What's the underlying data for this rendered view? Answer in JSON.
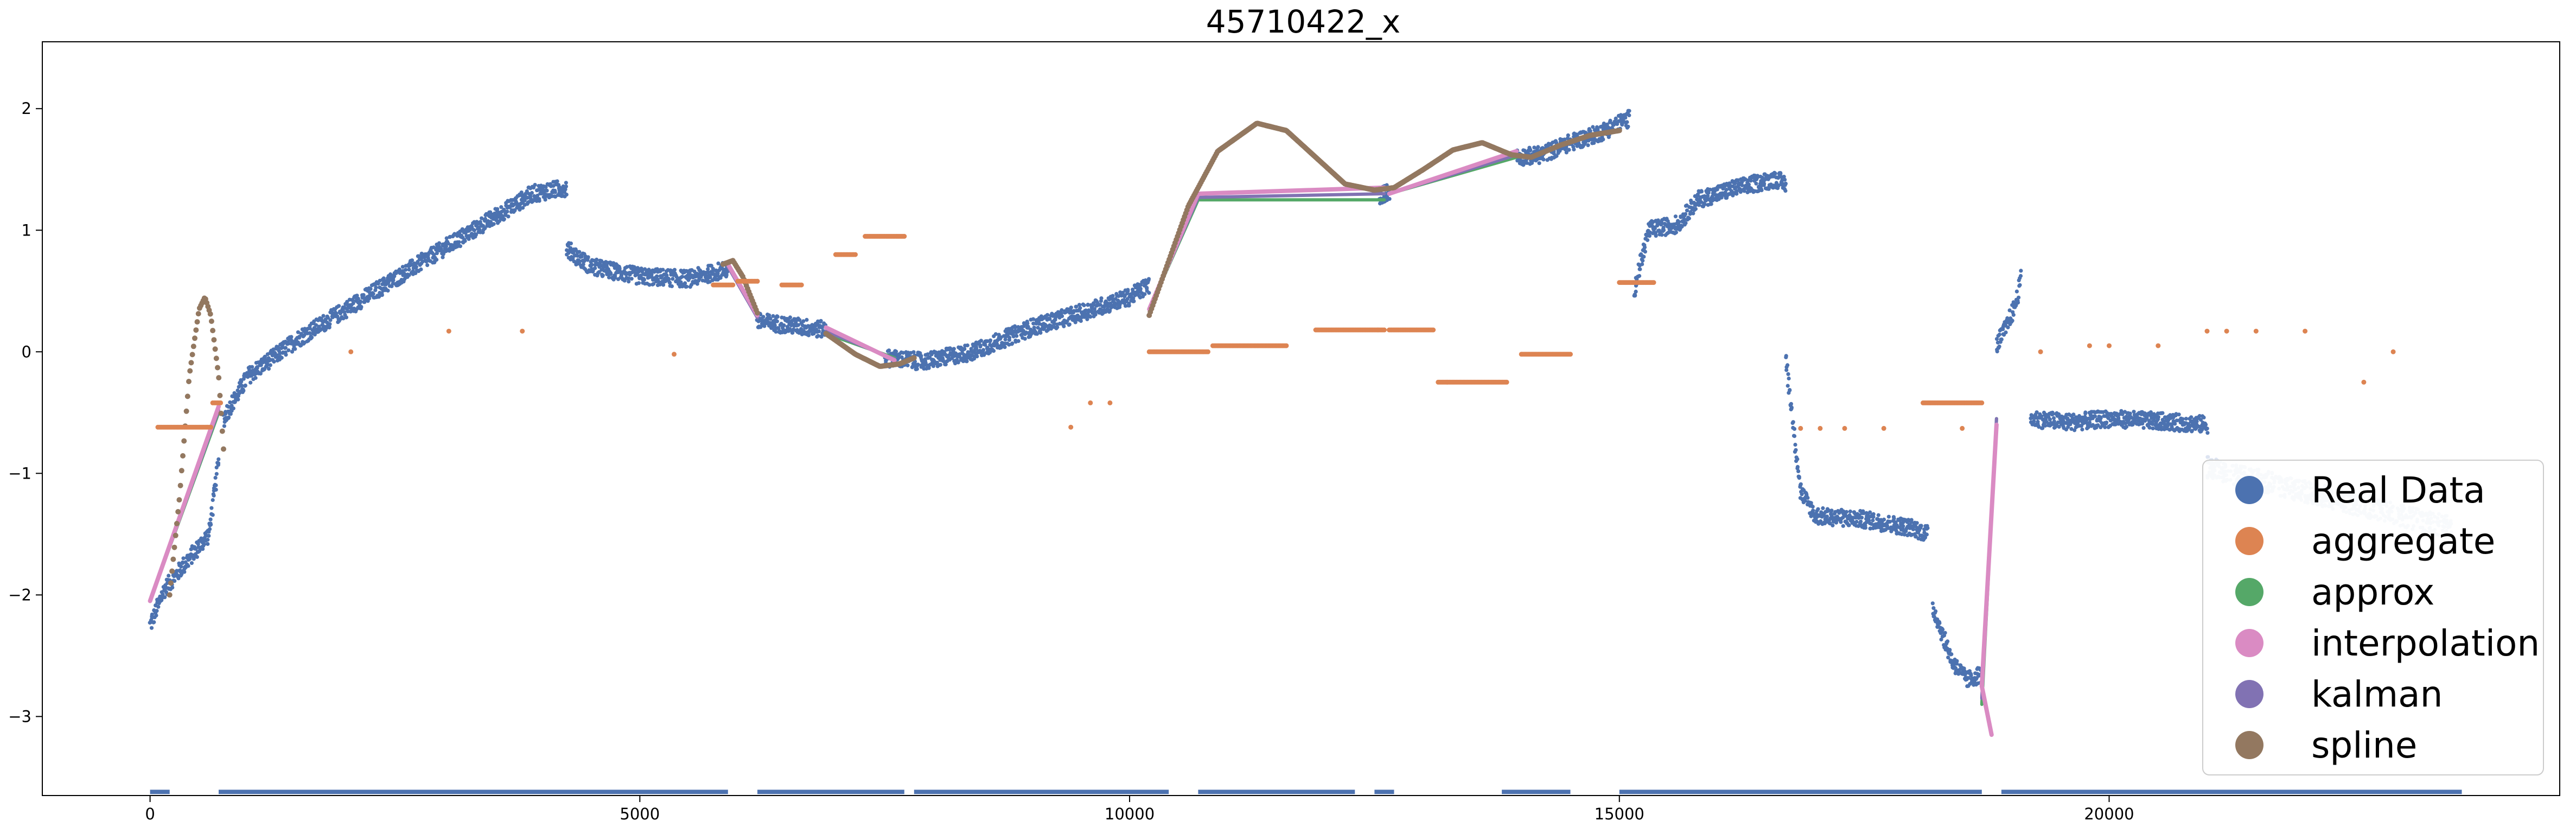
{
  "chart_data": {
    "type": "scatter",
    "title": "45710422_x",
    "xlabel": "",
    "ylabel": "",
    "xlim": [
      -1100,
      24600
    ],
    "ylim": [
      -3.65,
      2.55
    ],
    "xticks": [
      0,
      5000,
      10000,
      15000,
      20000
    ],
    "xtick_labels": [
      "0",
      "5000",
      "10000",
      "15000",
      "20000"
    ],
    "yticks": [
      2,
      1,
      0,
      -1,
      -2,
      -3
    ],
    "ytick_labels": [
      "2",
      "1",
      "0",
      "−1",
      "−2",
      "−3"
    ],
    "grid": false,
    "legend_position": "lower-right",
    "colors": {
      "real_data": "#4c72b0",
      "aggregate": "#dd8452",
      "approx": "#55a868",
      "interpolation": "#da8bc3",
      "kalman": "#8172b3",
      "spline": "#937860"
    },
    "legend": [
      "Real Data",
      "aggregate",
      "approx",
      "interpolation",
      "kalman",
      "spline"
    ],
    "series": [
      {
        "name": "Real Data",
        "marker": "point",
        "segments": [
          [
            [
              0,
              -2.25
            ],
            [
              150,
              -1.95
            ],
            [
              400,
              -1.7
            ],
            [
              600,
              -1.5
            ],
            [
              700,
              -0.9
            ]
          ],
          [
            [
              750,
              -0.55
            ],
            [
              1000,
              -0.2
            ],
            [
              1500,
              0.1
            ],
            [
              2000,
              0.35
            ],
            [
              2500,
              0.6
            ],
            [
              3000,
              0.85
            ],
            [
              3500,
              1.1
            ],
            [
              3900,
              1.3
            ],
            [
              4250,
              1.35
            ]
          ],
          [
            [
              4250,
              0.85
            ],
            [
              4500,
              0.7
            ],
            [
              5000,
              0.62
            ],
            [
              5500,
              0.6
            ],
            [
              5900,
              0.68
            ]
          ],
          [
            [
              6200,
              0.25
            ],
            [
              6500,
              0.22
            ],
            [
              6900,
              0.18
            ]
          ],
          [
            [
              7500,
              -0.05
            ],
            [
              7900,
              -0.08
            ],
            [
              8400,
              0.0
            ],
            [
              9000,
              0.2
            ],
            [
              9500,
              0.32
            ],
            [
              10000,
              0.45
            ],
            [
              10200,
              0.55
            ]
          ],
          [
            [
              12550,
              1.28
            ],
            [
              12650,
              1.32
            ]
          ],
          [
            [
              13950,
              1.6
            ],
            [
              14200,
              1.62
            ],
            [
              14500,
              1.72
            ],
            [
              14800,
              1.8
            ],
            [
              15100,
              1.92
            ]
          ],
          [
            [
              15150,
              0.5
            ],
            [
              15300,
              1.0
            ],
            [
              15600,
              1.05
            ],
            [
              15800,
              1.25
            ],
            [
              16200,
              1.35
            ],
            [
              16600,
              1.42
            ],
            [
              16700,
              1.38
            ]
          ],
          [
            [
              16700,
              -0.05
            ],
            [
              16850,
              -1.15
            ],
            [
              17000,
              -1.35
            ],
            [
              17500,
              -1.38
            ],
            [
              18000,
              -1.45
            ],
            [
              18150,
              -1.5
            ]
          ],
          [
            [
              18200,
              -2.1
            ],
            [
              18400,
              -2.55
            ],
            [
              18550,
              -2.7
            ],
            [
              18700,
              -2.65
            ]
          ],
          [
            [
              18850,
              0.05
            ],
            [
              18950,
              0.2
            ],
            [
              19050,
              0.4
            ],
            [
              19100,
              0.6
            ]
          ],
          [
            [
              19200,
              -0.55
            ],
            [
              19600,
              -0.58
            ],
            [
              20000,
              -0.55
            ],
            [
              20500,
              -0.57
            ],
            [
              21000,
              -0.6
            ]
          ]
        ],
        "faded_tail": [
          [
            21000,
            -0.95
          ],
          [
            22000,
            -1.15
          ],
          [
            23500,
            -1.45
          ]
        ]
      },
      {
        "name": "aggregate",
        "marker": "point",
        "runs": [
          [
            80,
            620,
            -0.62
          ],
          [
            640,
            720,
            -0.42
          ],
          [
            5750,
            5950,
            0.55
          ],
          [
            6000,
            6200,
            0.58
          ],
          [
            6450,
            6650,
            0.55
          ],
          [
            7000,
            7200,
            0.8
          ],
          [
            7300,
            7700,
            0.95
          ],
          [
            10200,
            10800,
            0.0
          ],
          [
            10850,
            11600,
            0.05
          ],
          [
            11900,
            12600,
            0.18
          ],
          [
            12650,
            13100,
            0.18
          ],
          [
            13150,
            13850,
            -0.25
          ],
          [
            14000,
            14500,
            -0.02
          ],
          [
            15000,
            15350,
            0.57
          ],
          [
            18100,
            18700,
            -0.42
          ]
        ],
        "points": [
          [
            2050,
            0.0
          ],
          [
            3050,
            0.17
          ],
          [
            3800,
            0.17
          ],
          [
            5350,
            -0.02
          ],
          [
            9400,
            -0.62
          ],
          [
            9600,
            -0.42
          ],
          [
            9800,
            -0.42
          ],
          [
            16850,
            -0.63
          ],
          [
            17050,
            -0.63
          ],
          [
            17300,
            -0.63
          ],
          [
            17700,
            -0.63
          ],
          [
            18500,
            -0.63
          ],
          [
            19300,
            0.0
          ],
          [
            19800,
            0.05
          ],
          [
            20000,
            0.05
          ],
          [
            20500,
            0.05
          ],
          [
            21000,
            0.17
          ],
          [
            21200,
            0.17
          ],
          [
            21500,
            0.17
          ],
          [
            22000,
            0.17
          ],
          [
            22600,
            -0.25
          ],
          [
            22900,
            0.0
          ]
        ]
      },
      {
        "name": "approx",
        "marker": "line",
        "segments": [
          [
            [
              0,
              -2.05
            ],
            [
              700,
              -0.5
            ]
          ],
          [
            [
              5900,
              0.7
            ],
            [
              6200,
              0.3
            ]
          ],
          [
            [
              6900,
              0.15
            ],
            [
              7600,
              -0.05
            ]
          ],
          [
            [
              10200,
              0.35
            ],
            [
              10700,
              1.25
            ],
            [
              12600,
              1.25
            ]
          ],
          [
            [
              12650,
              1.3
            ],
            [
              13950,
              1.6
            ]
          ],
          [
            [
              18700,
              -2.9
            ],
            [
              18850,
              -0.55
            ]
          ]
        ]
      },
      {
        "name": "interpolation",
        "marker": "line",
        "segments": [
          [
            [
              0,
              -2.05
            ],
            [
              700,
              -0.45
            ]
          ],
          [
            [
              5900,
              0.72
            ],
            [
              6200,
              0.3
            ]
          ],
          [
            [
              6900,
              0.2
            ],
            [
              7600,
              -0.07
            ]
          ],
          [
            [
              10200,
              0.35
            ],
            [
              10700,
              1.3
            ],
            [
              12600,
              1.35
            ]
          ],
          [
            [
              12650,
              1.3
            ],
            [
              13950,
              1.65
            ]
          ],
          [
            [
              18700,
              -2.75
            ],
            [
              18800,
              -3.15
            ]
          ],
          [
            [
              18700,
              -2.75
            ],
            [
              18850,
              -0.6
            ]
          ]
        ]
      },
      {
        "name": "kalman",
        "marker": "line",
        "segments": [
          [
            [
              0,
              -2.05
            ],
            [
              700,
              -0.48
            ]
          ],
          [
            [
              5900,
              0.7
            ],
            [
              6200,
              0.28
            ]
          ],
          [
            [
              6900,
              0.17
            ],
            [
              7600,
              -0.06
            ]
          ],
          [
            [
              10200,
              0.35
            ],
            [
              10700,
              1.27
            ],
            [
              12600,
              1.3
            ]
          ],
          [
            [
              12650,
              1.3
            ],
            [
              13950,
              1.62
            ]
          ],
          [
            [
              18700,
              -2.85
            ],
            [
              18850,
              -0.55
            ]
          ]
        ]
      },
      {
        "name": "spline",
        "marker": "point",
        "segments": [
          [
            [
              200,
              -2.0
            ],
            [
              300,
              -1.2
            ],
            [
              400,
              -0.2
            ],
            [
              500,
              0.35
            ],
            [
              560,
              0.45
            ],
            [
              620,
              0.3
            ],
            [
              700,
              -0.2
            ],
            [
              750,
              -0.8
            ]
          ],
          [
            [
              5850,
              0.72
            ],
            [
              5950,
              0.75
            ],
            [
              6050,
              0.62
            ],
            [
              6200,
              0.32
            ]
          ],
          [
            [
              6900,
              0.15
            ],
            [
              7200,
              -0.02
            ],
            [
              7450,
              -0.12
            ],
            [
              7650,
              -0.1
            ],
            [
              7800,
              -0.05
            ]
          ],
          [
            [
              10200,
              0.3
            ],
            [
              10400,
              0.75
            ],
            [
              10600,
              1.2
            ],
            [
              10900,
              1.65
            ],
            [
              11300,
              1.88
            ],
            [
              11600,
              1.82
            ],
            [
              11900,
              1.6
            ],
            [
              12200,
              1.38
            ],
            [
              12500,
              1.33
            ],
            [
              12700,
              1.35
            ],
            [
              13000,
              1.5
            ],
            [
              13300,
              1.66
            ],
            [
              13600,
              1.72
            ],
            [
              13900,
              1.62
            ],
            [
              14100,
              1.6
            ],
            [
              14400,
              1.7
            ],
            [
              14700,
              1.78
            ],
            [
              15000,
              1.82
            ]
          ]
        ]
      }
    ]
  }
}
